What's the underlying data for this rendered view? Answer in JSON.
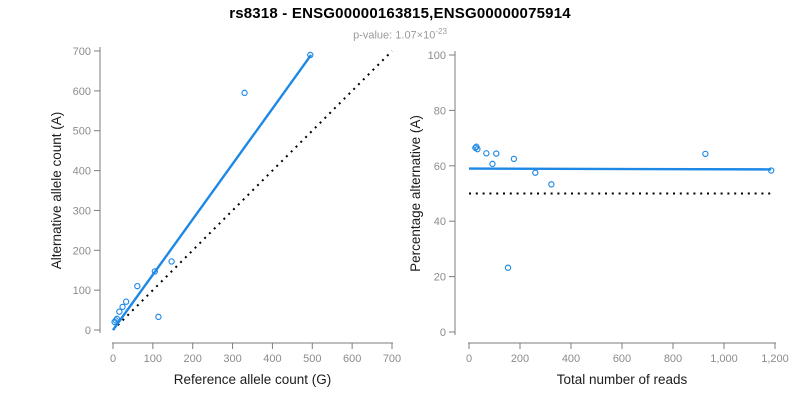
{
  "header": {
    "title": "rs8318 - ENSG00000163815,ENSG00000075914",
    "subtitle_prefix": "p-value: 1.07×10",
    "subtitle_exponent": "-23"
  },
  "colors": {
    "accent_blue": "#1E88E5",
    "line_black": "#000000",
    "axis_gray": "#7d7d7d",
    "tick_label_gray": "#8c8c8c",
    "subtitle_gray": "#9b9b9b",
    "title_black": "#000000"
  },
  "chart_data": [
    {
      "type": "scatter",
      "name": "allele-count-scatter",
      "xlabel": "Reference allele count (G)",
      "ylabel": "Alternative allele count (A)",
      "xlim": [
        0,
        700
      ],
      "ylim": [
        0,
        700
      ],
      "xticks": [
        0,
        100,
        200,
        300,
        400,
        500,
        600,
        700
      ],
      "xtick_labels": [
        "0",
        "100",
        "200",
        "300",
        "400",
        "500",
        "600",
        "700"
      ],
      "yticks": [
        0,
        100,
        200,
        300,
        400,
        500,
        600,
        700
      ],
      "ytick_labels": [
        "0",
        "100",
        "200",
        "300",
        "400",
        "500",
        "600",
        "700"
      ],
      "grid": false,
      "legend": "none",
      "points": [
        [
          4,
          20
        ],
        [
          7,
          24
        ],
        [
          10,
          28
        ],
        [
          16,
          46
        ],
        [
          24,
          58
        ],
        [
          33,
          71
        ],
        [
          61,
          110
        ],
        [
          105,
          147
        ],
        [
          114,
          33
        ],
        [
          147,
          172
        ],
        [
          330,
          595
        ],
        [
          495,
          690
        ]
      ],
      "lines": [
        {
          "name": "identity-line",
          "color": "line_black",
          "dash": "dotted",
          "coords": [
            [
              0,
              0
            ],
            [
              700,
              700
            ]
          ]
        },
        {
          "name": "fit-line",
          "color": "accent_blue",
          "dash": "solid",
          "coords": [
            [
              0,
              0
            ],
            [
              497,
              690
            ]
          ]
        }
      ]
    },
    {
      "type": "scatter",
      "name": "percentage-scatter",
      "xlabel": "Total number of reads",
      "ylabel": "Percentage alternative (A)",
      "xlim": [
        0,
        1200
      ],
      "ylim": [
        0,
        100
      ],
      "xticks": [
        0,
        200,
        400,
        600,
        800,
        1000,
        1200
      ],
      "xtick_labels": [
        "0",
        "200",
        "400",
        "600",
        "800",
        "1,000",
        "1,200"
      ],
      "yticks": [
        0,
        20,
        40,
        60,
        80,
        100
      ],
      "ytick_labels": [
        "0",
        "20",
        "40",
        "60",
        "80",
        "100"
      ],
      "grid": false,
      "legend": "none",
      "points": [
        [
          25,
          66.5
        ],
        [
          29,
          66.9
        ],
        [
          33,
          66.0
        ],
        [
          68,
          64.5
        ],
        [
          92,
          60.7
        ],
        [
          107,
          64.4
        ],
        [
          153,
          23.2
        ],
        [
          176,
          62.5
        ],
        [
          260,
          57.5
        ],
        [
          323,
          53.3
        ],
        [
          927,
          64.3
        ],
        [
          1185,
          58.3
        ]
      ],
      "lines": [
        {
          "name": "null-line",
          "color": "line_black",
          "dash": "dotted",
          "coords": [
            [
              0,
              50
            ],
            [
              1185,
              50
            ]
          ]
        },
        {
          "name": "fit-line",
          "color": "accent_blue",
          "dash": "solid",
          "coords": [
            [
              0,
              59
            ],
            [
              1185,
              58.7
            ]
          ]
        }
      ]
    }
  ]
}
